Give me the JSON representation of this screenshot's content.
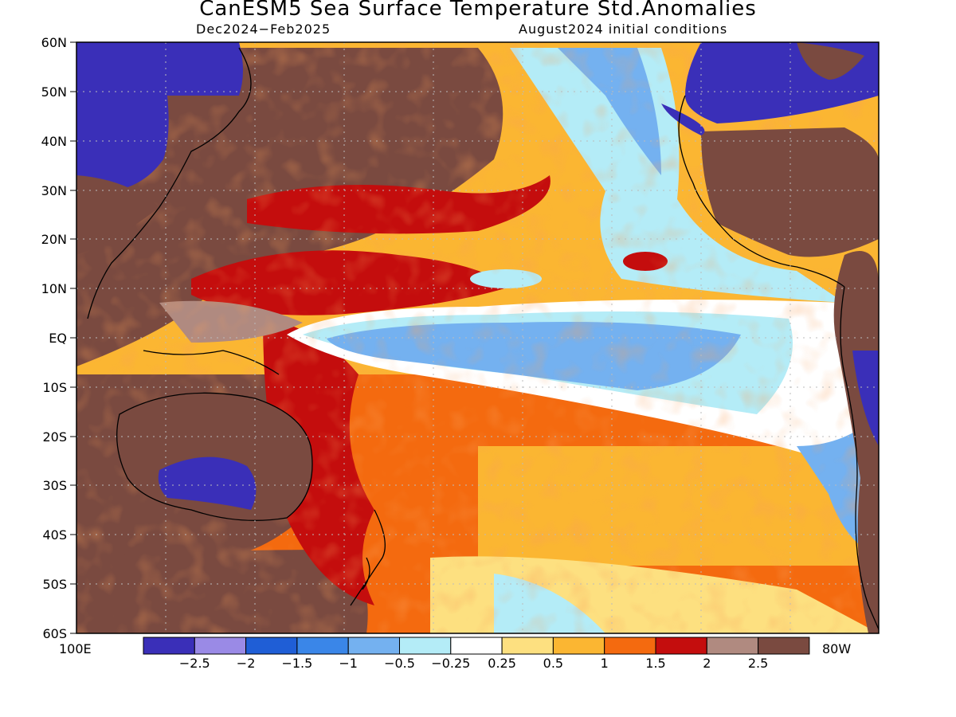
{
  "title": "CanESM5 Sea Surface Temperature Std.Anomalies",
  "subtitle_left": "Dec2024−Feb2025",
  "subtitle_right": "August2024 initial conditions",
  "lat_labels": [
    "60N",
    "50N",
    "40N",
    "30N",
    "20N",
    "10N",
    "EQ",
    "10S",
    "20S",
    "30S",
    "40S",
    "50S",
    "60S"
  ],
  "lon_labels": {
    "west": "100E",
    "east": "80W"
  },
  "colorbar": {
    "colors": [
      "#3a2fb8",
      "#9a8ae6",
      "#1f5ed6",
      "#3a86e8",
      "#74b1f0",
      "#b4ecf7",
      "#ffffff",
      "#fde080",
      "#fbb632",
      "#f46a0f",
      "#c40d0d",
      "#b08a80",
      "#7a4a40"
    ],
    "labels": [
      "−2.5",
      "−2",
      "−1.5",
      "−1",
      "−0.5",
      "−0.25",
      "0.25",
      "0.5",
      "1",
      "1.5",
      "2",
      "2.5"
    ]
  }
}
